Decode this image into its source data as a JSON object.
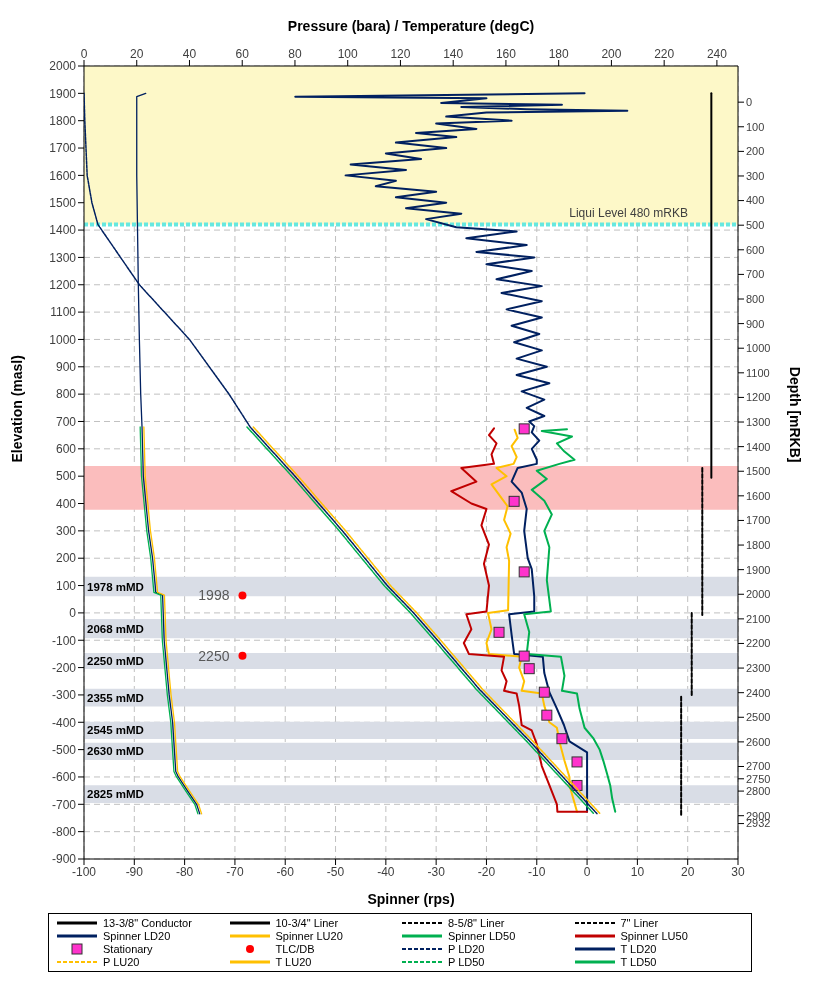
{
  "chart_data": {
    "type": "line",
    "xlabel": "Spinner (rps)",
    "ylabel": "Elevation (masl)",
    "x2label": "Pressure (bara) / Temperature (degC)",
    "y2label": "Depth [mRKB]",
    "xlim": [
      -100,
      30
    ],
    "xticks": [
      -100,
      -90,
      -80,
      -70,
      -60,
      -50,
      -40,
      -30,
      -20,
      -10,
      0,
      10,
      20,
      30
    ],
    "x2lim": [
      0,
      248
    ],
    "x2ticks": [
      0,
      20,
      40,
      60,
      80,
      100,
      120,
      140,
      160,
      180,
      200,
      220,
      240
    ],
    "ylim": [
      -900,
      2000
    ],
    "yticks": [
      -900,
      -800,
      -700,
      -600,
      -500,
      -400,
      -300,
      -200,
      -100,
      0,
      100,
      200,
      300,
      400,
      500,
      600,
      700,
      800,
      900,
      1000,
      1100,
      1200,
      1300,
      1400,
      1500,
      1600,
      1700,
      1800,
      1900,
      2000
    ],
    "y2lim": [
      3076,
      -147
    ],
    "y2ticks": [
      0,
      100,
      200,
      300,
      400,
      500,
      600,
      700,
      800,
      900,
      1000,
      1100,
      1200,
      1300,
      1400,
      1500,
      1600,
      1700,
      1800,
      1900,
      2000,
      2100,
      2200,
      2300,
      2400,
      2500,
      2600,
      2700,
      2750,
      2800,
      2900,
      2932
    ],
    "grid": true,
    "legend": "bottom",
    "bands": [
      {
        "axis": "y",
        "from": 1420,
        "to": 2000,
        "color": "#fdf8c8"
      },
      {
        "axis": "y",
        "from": 377,
        "to": 537,
        "color": "#fbbdbd"
      },
      {
        "axis": "y",
        "from": 61,
        "to": 132,
        "color": "#d9dde6",
        "label": "1978 mMD"
      },
      {
        "axis": "y",
        "from": -93,
        "to": -22,
        "color": "#d9dde6",
        "label": "2068 mMD"
      },
      {
        "axis": "y",
        "from": -205,
        "to": -147,
        "color": "#d9dde6",
        "label": "2250 mMD"
      },
      {
        "axis": "y",
        "from": -342,
        "to": -277,
        "color": "#d9dde6",
        "label": "2355 mMD"
      },
      {
        "axis": "y",
        "from": -461,
        "to": -398,
        "color": "#d9dde6",
        "label": "2545 mMD"
      },
      {
        "axis": "y",
        "from": -538,
        "to": -475,
        "color": "#d9dde6",
        "label": "2630 mMD"
      },
      {
        "axis": "y",
        "from": -695,
        "to": -630,
        "color": "#d9dde6",
        "label": "2825 mMD"
      }
    ],
    "ref_lines": [
      {
        "axis": "y",
        "value": 1420,
        "label": "Liqui Level 480 mRKB",
        "color": "#66e8e0",
        "line_style": "dashed"
      }
    ],
    "annotations": [
      {
        "text": "1998",
        "x": -68.5,
        "y": 64
      },
      {
        "text": "2250",
        "x": -68.5,
        "y": -157
      }
    ],
    "series": [
      {
        "name": "13-3/8\" Conductor",
        "color": "#000000",
        "line_style": "solid"
      },
      {
        "name": "10-3/4\" Liner",
        "color": "#000000",
        "line_style": "solid",
        "x": [
          24.7,
          24.7
        ],
        "values": [
          1900,
          494
        ]
      },
      {
        "name": "8-5/8\" Liner",
        "color": "#000000",
        "line_style": "dashed",
        "x": [
          22.9,
          22.9
        ],
        "values": [
          530,
          -8
        ]
      },
      {
        "name": "7\" Liner",
        "color": "#000000",
        "line_style": "dashed",
        "x": [
          20.8,
          20.8,
          null,
          18.7,
          18.7
        ],
        "values": [
          0,
          -300,
          null,
          -307,
          -741
        ]
      },
      {
        "name": "Spinner LD20",
        "color": "#002060",
        "line_style": "solid",
        "x": [
          -0.5,
          -58,
          -20,
          -29,
          -5,
          -25,
          -12,
          8,
          -20,
          -28,
          -15,
          -30,
          -22,
          -34,
          -26,
          -38,
          -28,
          -40,
          -33,
          -47,
          -36,
          -48,
          -38,
          -42,
          -30,
          -38,
          -28,
          -36,
          -25,
          -32,
          -26,
          -14,
          -24,
          -12,
          -22,
          -10.5,
          -20,
          -11,
          -18,
          -9,
          -17,
          -9,
          -16,
          -9,
          -15,
          -9.5,
          -14.5,
          -9,
          -14,
          -8,
          -14,
          -7.5,
          -13,
          -8.5,
          -12,
          -8.5,
          -11.5,
          -10.5,
          -11,
          -9.5,
          -11,
          -10,
          -10,
          -13.8,
          -15,
          -13,
          -12.5,
          -12,
          -12.5,
          -11.8,
          -11,
          -10.5,
          -10.5,
          -15.5,
          -15,
          -14.5,
          -8.8,
          -8.5,
          -7.5,
          -6,
          -4.6,
          -3.5,
          0,
          0
        ],
        "values": [
          1900,
          1888,
          1882,
          1865,
          1858,
          1850,
          1842,
          1836,
          1830,
          1815,
          1800,
          1790,
          1770,
          1755,
          1740,
          1720,
          1700,
          1680,
          1660,
          1640,
          1620,
          1600,
          1580,
          1560,
          1540,
          1520,
          1500,
          1480,
          1460,
          1440,
          1410,
          1395,
          1370,
          1345,
          1320,
          1300,
          1275,
          1250,
          1220,
          1195,
          1170,
          1140,
          1110,
          1080,
          1050,
          1020,
          990,
          960,
          930,
          900,
          870,
          840,
          810,
          780,
          750,
          720,
          700,
          683,
          660,
          630,
          600,
          560,
          545,
          530,
          480,
          440,
          410,
          380,
          300,
          200,
          160,
          60,
          5,
          -5,
          -80,
          -150,
          -160,
          -220,
          -290,
          -350,
          -410,
          -470,
          -510,
          -727
        ]
      },
      {
        "name": "Spinner LU20",
        "color": "#ffc000",
        "line_style": "solid",
        "x": [
          -14.4,
          -13.8,
          -15,
          -14,
          -14.6,
          -18,
          -16,
          -19,
          -17,
          -15.8,
          -16.5,
          -15.2,
          -16,
          -15.5,
          -15.7,
          -19.7,
          -19,
          -20,
          -19.5,
          -13,
          -13.5,
          -12.5,
          -13,
          -9,
          -8.5,
          -7.5,
          -6,
          -5.5,
          -4.5,
          -3.5,
          -3.5,
          -2
        ],
        "values": [
          670,
          640,
          610,
          570,
          545,
          530,
          500,
          470,
          420,
          390,
          340,
          290,
          240,
          190,
          10,
          0,
          -60,
          -110,
          -150,
          -160,
          -200,
          -250,
          -285,
          -295,
          -340,
          -400,
          -420,
          -470,
          -540,
          -600,
          -630,
          -727
        ]
      },
      {
        "name": "Spinner LD50",
        "color": "#00b050",
        "line_style": "solid",
        "x": [
          -4,
          -9,
          -3,
          -6,
          -4.5,
          -2.5,
          -5.5,
          -10,
          -8,
          -11,
          -8.5,
          -7,
          -8.5,
          -7.5,
          -8,
          -7.2,
          -12.5,
          -11.5,
          -12,
          -5.2,
          -4.5,
          -5,
          -2,
          -1.5,
          -0.5,
          1.3,
          2.5,
          3.3,
          4,
          4.6,
          5,
          5.6
        ],
        "values": [
          672,
          665,
          645,
          620,
          590,
          560,
          545,
          520,
          490,
          450,
          410,
          360,
          300,
          240,
          120,
          5,
          -5,
          -70,
          -150,
          -160,
          -230,
          -285,
          -295,
          -350,
          -420,
          -460,
          -500,
          -545,
          -590,
          -631,
          -680,
          -727
        ]
      },
      {
        "name": "Spinner LU50",
        "color": "#c00000",
        "line_style": "solid",
        "x": [
          -18.5,
          -19.5,
          -18,
          -19,
          -18.5,
          -25,
          -22,
          -27,
          -23,
          -20,
          -21,
          -19.5,
          -20.5,
          -19.5,
          -20,
          -24,
          -23,
          -24.5,
          -23.5,
          -16.5,
          -17,
          -16,
          -16.5,
          -14,
          -13.5,
          -13,
          -11,
          -10,
          -9,
          -7.5,
          -6,
          -5.9,
          0
        ],
        "values": [
          675,
          650,
          620,
          580,
          545,
          530,
          480,
          445,
          400,
          380,
          320,
          250,
          180,
          100,
          5,
          -5,
          -60,
          -110,
          -150,
          -160,
          -210,
          -250,
          -285,
          -295,
          -340,
          -410,
          -430,
          -480,
          -560,
          -630,
          -700,
          -727,
          -727
        ]
      },
      {
        "name": "Stationary",
        "type": "scatter",
        "color": "#ff33cc",
        "marker": "square",
        "x": [
          -12.5,
          -14.5,
          -12.5,
          -17.5,
          -12.5,
          -11.5,
          -8.5,
          -8,
          -5,
          -2,
          -2
        ],
        "values": [
          673,
          408,
          150,
          -71,
          -158,
          -204,
          -290,
          -374,
          -460,
          -545,
          -631
        ]
      },
      {
        "name": "TLC/DB",
        "type": "scatter",
        "color": "#ff0000",
        "marker": "circle",
        "x": [
          -68.5,
          -68.5
        ],
        "values": [
          64,
          -157
        ]
      },
      {
        "name": "P LD20",
        "axis": "x2",
        "color": "#002060",
        "line_style": "dashed",
        "x": [
          0,
          0.3,
          1.2,
          3,
          5.3,
          21,
          40,
          55,
          63,
          80,
          98,
          115,
          125,
          132.8,
          150,
          168.8,
          194.5
        ],
        "values": [
          1900,
          1800,
          1600,
          1500,
          1420,
          1200,
          1000,
          800,
          680,
          500,
          300,
          100,
          0,
          -86,
          -280,
          -467,
          -734
        ]
      },
      {
        "name": "T LD20",
        "axis": "x2",
        "color": "#002060",
        "line_style": "solid",
        "x": [
          23.4,
          20,
          20,
          20.3,
          20.6,
          21,
          21.5,
          22,
          22.5,
          23.5,
          24.5,
          26,
          27,
          27.2,
          29.8,
          30.4,
          32.3,
          33.6,
          34.8,
          35.8,
          39.2,
          42.7,
          43.9
        ],
        "values": [
          1900,
          1888,
          1600,
          1400,
          1200,
          1000,
          800,
          680,
          500,
          400,
          300,
          200,
          100,
          75,
          65,
          -100,
          -300,
          -400,
          -580,
          -600,
          -650,
          -700,
          -735
        ]
      },
      {
        "name": "P LU20",
        "axis": "x2",
        "color": "#ffc000",
        "line_style": "dashed",
        "x": [
          64.2,
          81.2,
          99.2,
          116.2,
          126.2,
          134,
          151.2,
          170,
          195.7
        ],
        "values": [
          680,
          500,
          300,
          100,
          0,
          -86,
          -280,
          -467,
          -734
        ]
      },
      {
        "name": "T LU20",
        "axis": "x2",
        "color": "#ffc000",
        "line_style": "solid",
        "x": [
          22.7,
          23.2,
          24.2,
          25.2,
          26.7,
          27.9,
          30.5,
          31.1,
          33,
          34.3,
          35.5,
          36.5,
          39.9,
          43.4,
          44.6
        ],
        "values": [
          680,
          500,
          400,
          300,
          200,
          75,
          65,
          -100,
          -300,
          -400,
          -580,
          -600,
          -650,
          -700,
          -735
        ]
      },
      {
        "name": "P LD50",
        "axis": "x2",
        "color": "#00b050",
        "line_style": "dashed",
        "x": [
          61.8,
          78.8,
          96.8,
          113.8,
          123.8,
          131.6,
          148.8,
          167.6,
          193.3
        ],
        "values": [
          680,
          500,
          300,
          100,
          0,
          -86,
          -280,
          -467,
          -734
        ]
      },
      {
        "name": "T LD50",
        "axis": "x2",
        "color": "#00b050",
        "line_style": "solid",
        "x": [
          21.3,
          21.8,
          22.8,
          23.8,
          25.3,
          26.5,
          29.1,
          29.7,
          31.6,
          32.9,
          34.1,
          35.1,
          38.5,
          42,
          43.2
        ],
        "values": [
          680,
          500,
          400,
          300,
          200,
          75,
          65,
          -100,
          -300,
          -400,
          -580,
          -600,
          -650,
          -700,
          -735
        ]
      }
    ]
  }
}
